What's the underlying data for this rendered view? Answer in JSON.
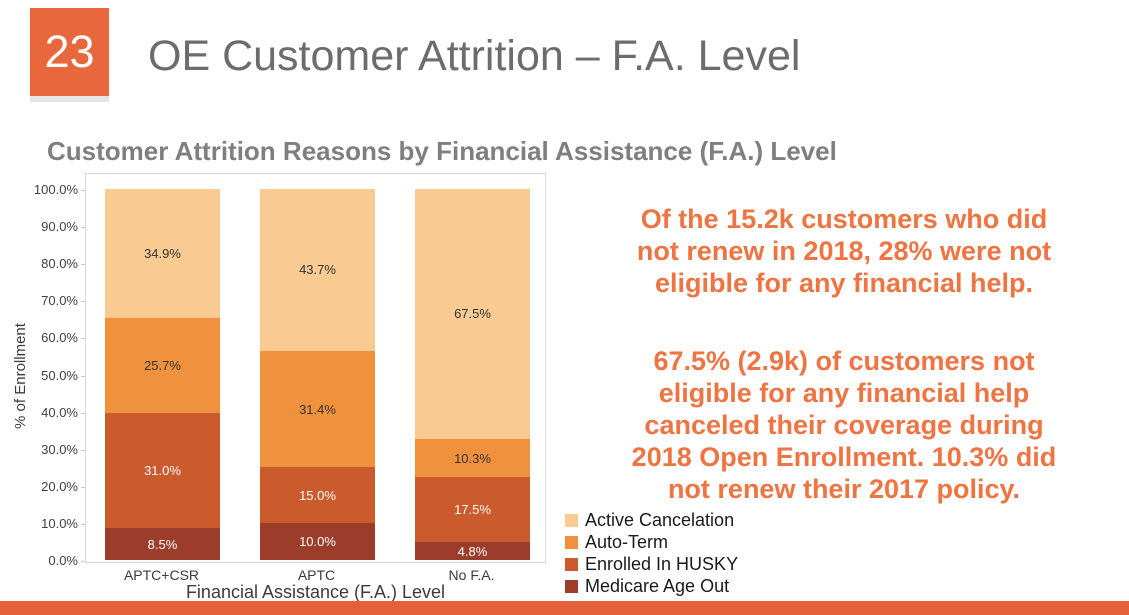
{
  "slide": {
    "number": "23",
    "title": "OE Customer Attrition – F.A. Level",
    "accent_color": "#E8673C",
    "bottom_bar_color": "#E5603A",
    "title_color": "#6C6C6C"
  },
  "chart": {
    "title": "Customer Attrition Reasons by Financial Assistance (F.A.) Level",
    "title_color": "#7F7F7F",
    "y_axis_title": "% of Enrollment",
    "x_axis_title": "Financial Assistance (F.A.) Level",
    "y_ticks": [
      "100.0%",
      "90.0%",
      "80.0%",
      "70.0%",
      "60.0%",
      "50.0%",
      "40.0%",
      "30.0%",
      "20.0%",
      "10.0%",
      "0.0%"
    ]
  },
  "chart_data": {
    "type": "bar",
    "stacked": true,
    "title": "Customer Attrition Reasons by Financial Assistance (F.A.) Level",
    "xlabel": "Financial Assistance (F.A.) Level",
    "ylabel": "% of Enrollment",
    "ylim": [
      0,
      100
    ],
    "y_tick_step": 10,
    "grid": false,
    "legend_position": "bottom-right",
    "categories": [
      "APTC+CSR",
      "APTC",
      "No F.A."
    ],
    "series": [
      {
        "name": "Medicare Age Out",
        "color": "#9C3D2B",
        "label_color": "#FFFFFF",
        "values": [
          8.5,
          10.0,
          4.8
        ]
      },
      {
        "name": "Enrolled In HUSKY",
        "color": "#CB5A2D",
        "label_color": "#FFFFFF",
        "values": [
          31.0,
          15.0,
          17.5
        ]
      },
      {
        "name": "Auto-Term",
        "color": "#F0913E",
        "label_color": "#333333",
        "values": [
          25.7,
          31.4,
          10.3
        ]
      },
      {
        "name": "Active Cancelation",
        "color": "#F9CB92",
        "label_color": "#333333",
        "values": [
          34.9,
          43.7,
          67.5
        ]
      }
    ],
    "legend": [
      "Active Cancelation",
      "Auto-Term",
      "Enrolled In HUSKY",
      "Medicare Age Out"
    ]
  },
  "insight": {
    "color": "#EF7442",
    "p1_lines": [
      "Of the 15.2k customers who did",
      "not renew in 2018, 28% were not",
      "eligible for any financial help."
    ],
    "p2_lines": [
      "67.5% (2.9k) of customers not",
      "eligible for any financial help",
      "canceled their coverage during",
      "2018 Open Enrollment. 10.3% did",
      "not renew their 2017 policy."
    ]
  }
}
